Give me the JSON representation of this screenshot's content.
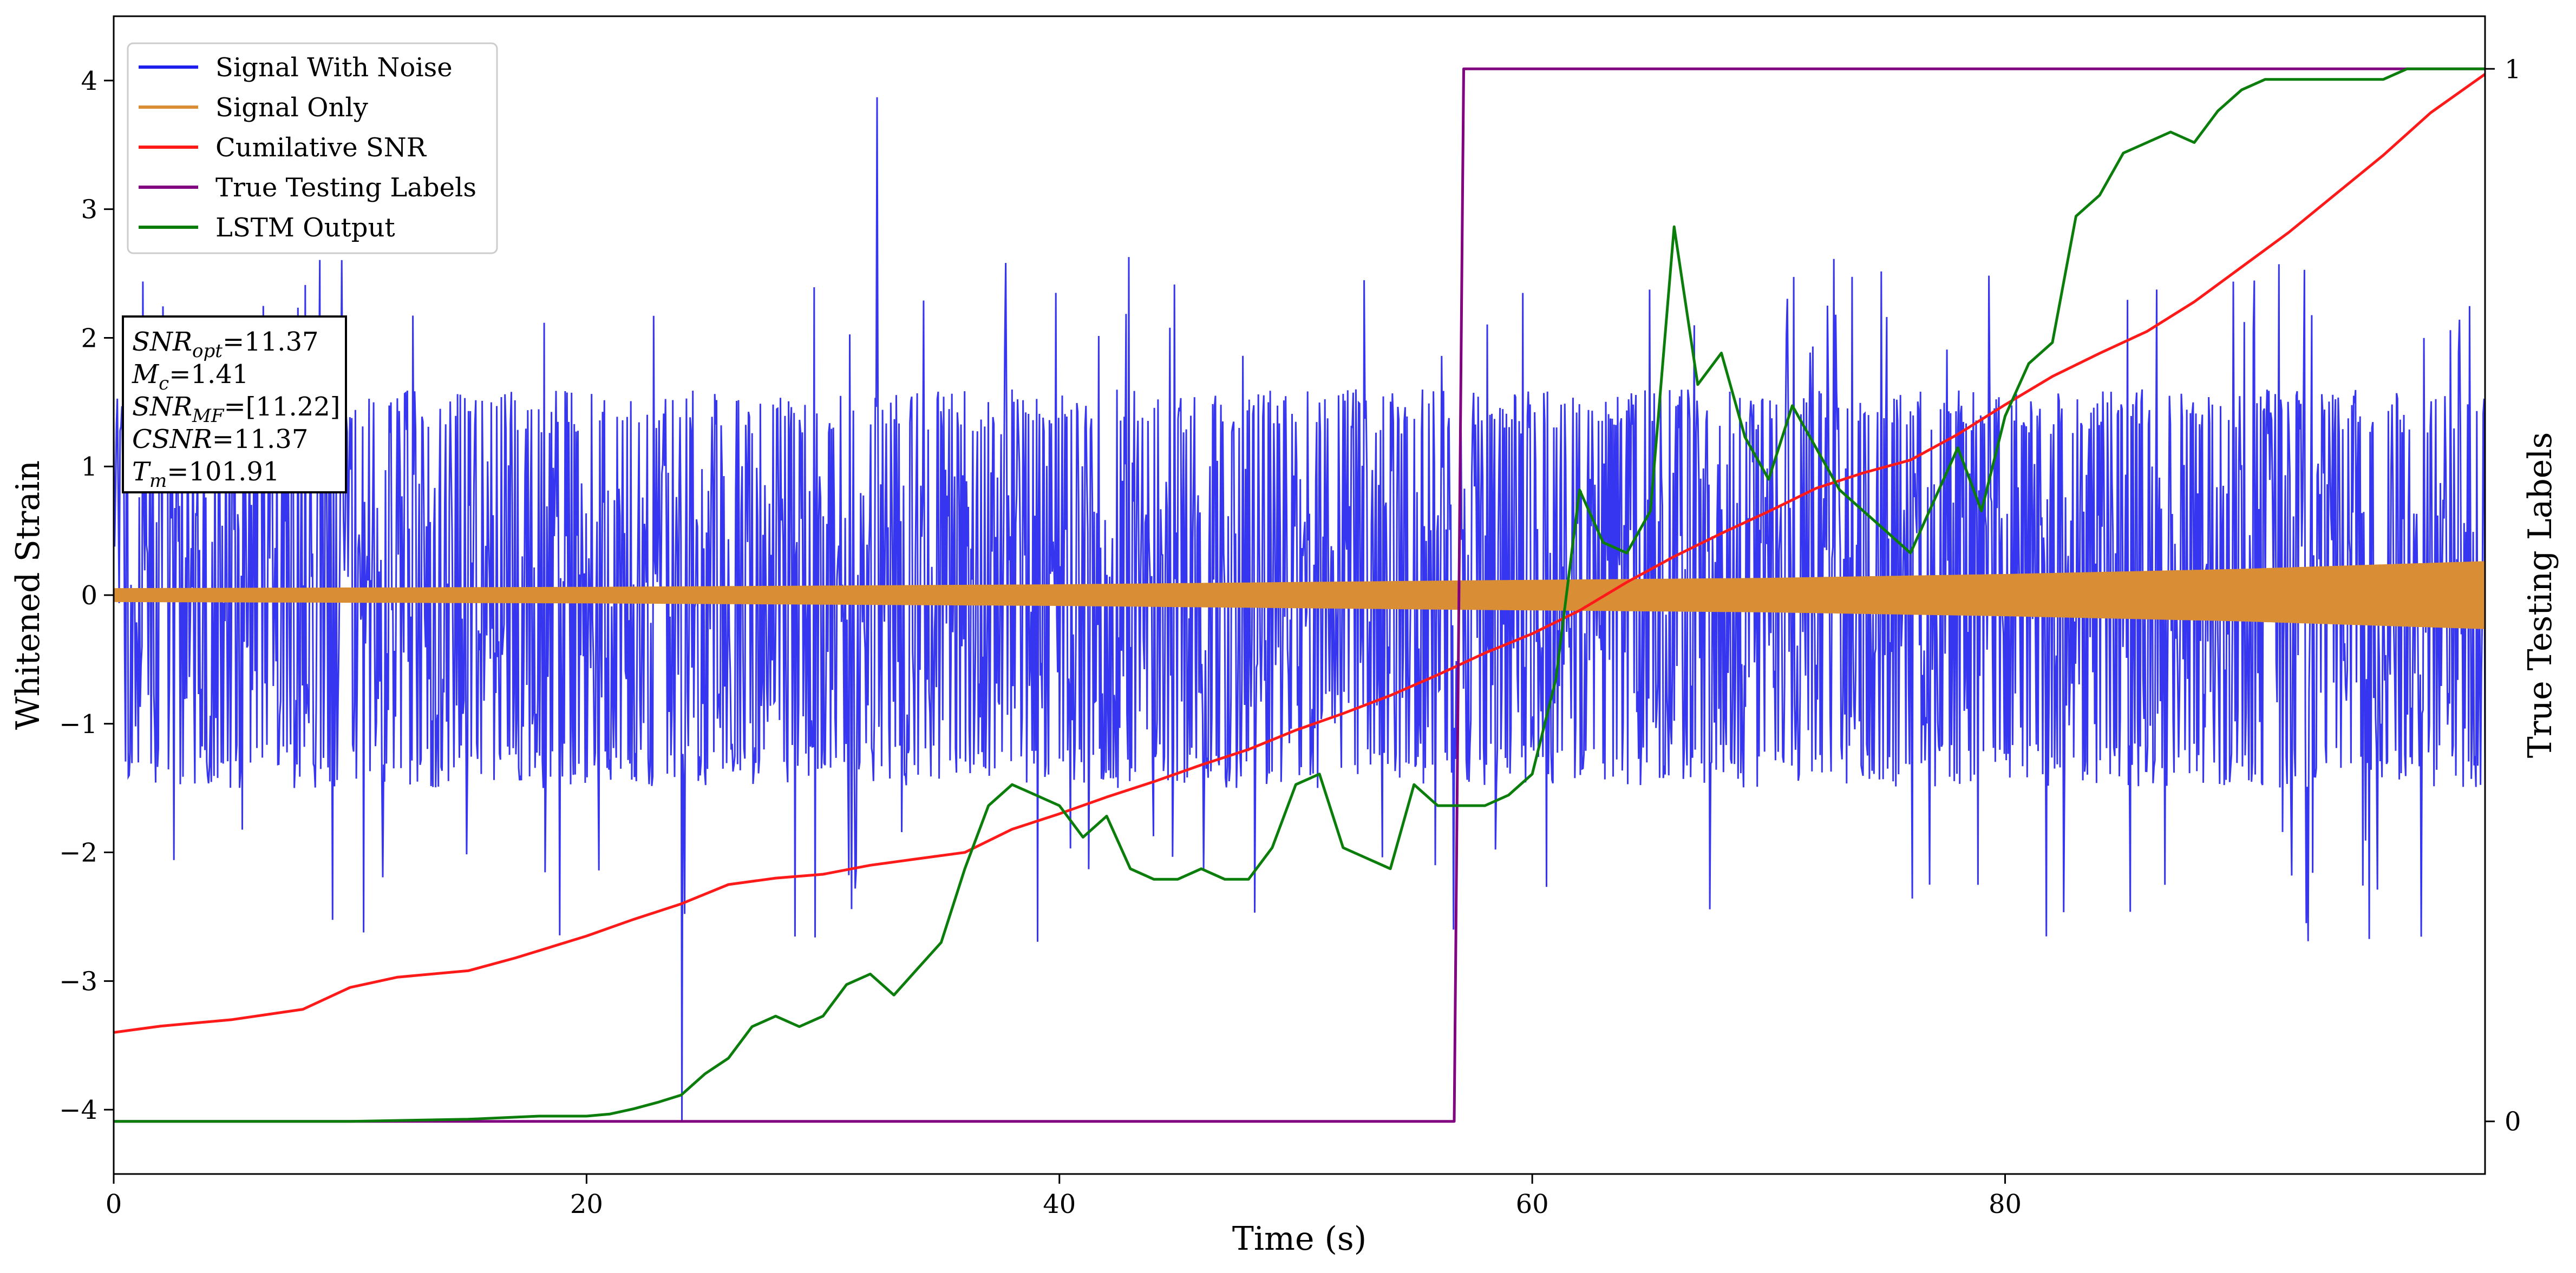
{
  "chart_data": {
    "type": "line",
    "xlabel": "Time (s)",
    "ylabel": "Whitened Strain",
    "y2label": "True Testing Labels",
    "xlim": [
      0,
      100.3
    ],
    "ylim": [
      -4.5,
      4.5
    ],
    "y2lim": [
      -0.05,
      1.05
    ],
    "x_ticks": [
      0,
      20,
      40,
      60,
      80
    ],
    "y_ticks": [
      -4,
      -3,
      -2,
      -1,
      0,
      1,
      2,
      3,
      4
    ],
    "y2_ticks": [
      0,
      1
    ],
    "grid": false,
    "legend_position": "top-left",
    "colors": {
      "noise": "#2020ee",
      "signal": "#d98e35",
      "csnr": "#ff1a1a",
      "labels": "#800080",
      "lstm": "#0a7d0a"
    },
    "series": [
      {
        "name": "Signal With Noise",
        "axis": "left",
        "description_values": "dense noise band, mostly between -1.5 and 1.7; spikes up to 3.85 near t=32.3 and down to -4.1 near t=24",
        "envelope": {
          "upper_typical": 1.6,
          "lower_typical": -1.5,
          "max": 3.87,
          "min": -4.1
        }
      },
      {
        "name": "Signal Only",
        "axis": "left",
        "amplitude": {
          "x": [
            0,
            20,
            40,
            57,
            70,
            80,
            90,
            100.3
          ],
          "y": [
            0.05,
            0.06,
            0.08,
            0.11,
            0.13,
            0.16,
            0.2,
            0.26
          ]
        }
      },
      {
        "name": "Cumilative SNR",
        "axis": "left",
        "x": [
          0,
          2,
          5,
          8,
          10,
          12,
          15,
          17,
          20,
          22,
          24,
          26,
          28,
          30,
          32,
          34,
          36,
          38,
          40,
          42,
          44,
          46,
          48,
          50,
          52,
          54,
          56,
          58,
          60,
          62,
          64,
          66,
          68,
          70,
          72,
          74,
          76,
          78,
          80,
          82,
          84,
          86,
          88,
          90,
          92,
          94,
          96,
          98,
          100.3
        ],
        "y": [
          -3.4,
          -3.35,
          -3.3,
          -3.22,
          -3.05,
          -2.97,
          -2.92,
          -2.82,
          -2.65,
          -2.52,
          -2.4,
          -2.25,
          -2.2,
          -2.17,
          -2.1,
          -2.05,
          -2.0,
          -1.82,
          -1.7,
          -1.57,
          -1.45,
          -1.32,
          -1.2,
          -1.05,
          -0.92,
          -0.78,
          -0.62,
          -0.45,
          -0.3,
          -0.12,
          0.1,
          0.3,
          0.48,
          0.65,
          0.83,
          0.95,
          1.05,
          1.25,
          1.48,
          1.7,
          1.88,
          2.05,
          2.28,
          2.55,
          2.82,
          3.12,
          3.42,
          3.75,
          4.05
        ]
      },
      {
        "name": "True Testing Labels",
        "axis": "right",
        "x": [
          0,
          56.7,
          57.1,
          100.3
        ],
        "y": [
          0,
          0,
          1,
          1
        ]
      },
      {
        "name": "LSTM Output",
        "axis": "right",
        "x": [
          0,
          10,
          15,
          18,
          20,
          21,
          22,
          23,
          24,
          25,
          26,
          27,
          28,
          29,
          30,
          31,
          32,
          33,
          34,
          35,
          36,
          37,
          38,
          39,
          40,
          41,
          42,
          43,
          44,
          45,
          46,
          47,
          48,
          49,
          50,
          51,
          52,
          53,
          54,
          55,
          56,
          57,
          58,
          59,
          60,
          61,
          62,
          63,
          64,
          65,
          66,
          67,
          68,
          69,
          70,
          71,
          72,
          73,
          74,
          75,
          76,
          77,
          78,
          79,
          80,
          81,
          82,
          83,
          84,
          85,
          86,
          87,
          88,
          89,
          90,
          91,
          92,
          93,
          94,
          95,
          96,
          97,
          98,
          99,
          100.3
        ],
        "y": [
          0,
          0,
          0.002,
          0.005,
          0.005,
          0.007,
          0.012,
          0.018,
          0.025,
          0.045,
          0.06,
          0.09,
          0.1,
          0.09,
          0.1,
          0.13,
          0.14,
          0.12,
          0.145,
          0.17,
          0.24,
          0.3,
          0.32,
          0.31,
          0.3,
          0.27,
          0.29,
          0.24,
          0.23,
          0.23,
          0.24,
          0.23,
          0.23,
          0.26,
          0.32,
          0.33,
          0.26,
          0.25,
          0.24,
          0.32,
          0.3,
          0.3,
          0.3,
          0.31,
          0.33,
          0.42,
          0.6,
          0.55,
          0.54,
          0.58,
          0.85,
          0.7,
          0.73,
          0.65,
          0.61,
          0.68,
          0.64,
          0.6,
          0.58,
          0.56,
          0.54,
          0.59,
          0.64,
          0.58,
          0.67,
          0.72,
          0.74,
          0.86,
          0.88,
          0.92,
          0.93,
          0.94,
          0.93,
          0.96,
          0.98,
          0.99,
          0.99,
          0.99,
          0.99,
          0.99,
          0.99,
          1.0,
          1.0,
          1.0,
          1.0
        ]
      }
    ],
    "annotation": [
      {
        "label": "SNR",
        "sub": "opt",
        "value": "=11.37"
      },
      {
        "label": "M",
        "sub": "c",
        "value": "=1.41"
      },
      {
        "label": "SNR",
        "sub": "MF",
        "value": "=[11.22]"
      },
      {
        "label": "CSNR",
        "sub": "",
        "value": "=11.37"
      },
      {
        "label": "T",
        "sub": "m",
        "value": "=101.91"
      }
    ]
  }
}
